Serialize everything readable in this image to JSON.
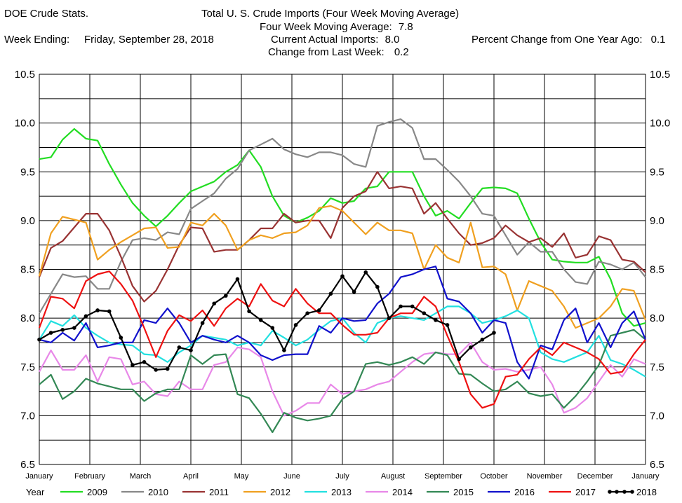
{
  "header": {
    "source": "DOE Crude Stats.",
    "title": "Total U. S. Crude Imports (Four Week Moving Average)",
    "week_ending_label": "Week Ending:",
    "week_ending_value": "Friday, September 28, 2018",
    "stats": [
      {
        "label": "Four Week Moving Average:",
        "value": "7.8"
      },
      {
        "label": "Current Actual Imports:",
        "value": "8.0"
      },
      {
        "label": "Change from Last Week:",
        "value": "0.2"
      }
    ],
    "pct_change_label": "Percent Change from One Year Ago:",
    "pct_change_value": "0.1"
  },
  "legend_title": "Year",
  "chart_data": {
    "type": "line",
    "title": "Total U. S. Crude Imports (Four Week Moving Average)",
    "ylim": [
      6.5,
      10.5
    ],
    "ystep": 0.25,
    "ytick_labels": [
      "6.5",
      "7.0",
      "7.5",
      "8.0",
      "8.5",
      "9.0",
      "9.5",
      "10.0",
      "10.5"
    ],
    "xlim": [
      1,
      53
    ],
    "months": [
      "January",
      "February",
      "March",
      "April",
      "May",
      "June",
      "July",
      "August",
      "September",
      "October",
      "November",
      "December",
      "January"
    ],
    "grid": true,
    "legend_position": "bottom",
    "series": [
      {
        "name": "2009",
        "color": "#22dd22",
        "marker": false,
        "values": [
          9.63,
          9.65,
          9.83,
          9.94,
          9.84,
          9.82,
          9.58,
          9.37,
          9.18,
          9.05,
          8.94,
          9.05,
          9.18,
          9.3,
          9.35,
          9.4,
          9.5,
          9.57,
          9.72,
          9.55,
          9.25,
          9.05,
          8.98,
          9.03,
          9.1,
          9.23,
          9.18,
          9.2,
          9.33,
          9.35,
          9.5,
          9.5,
          9.5,
          9.25,
          9.05,
          9.1,
          9.02,
          9.18,
          9.33,
          9.34,
          9.33,
          9.28,
          9.02,
          8.78,
          8.6,
          8.58,
          8.57,
          8.57,
          8.63,
          8.4,
          8.05,
          7.92,
          7.95
        ]
      },
      {
        "name": "2010",
        "color": "#888888",
        "marker": false,
        "values": [
          8.05,
          8.25,
          8.45,
          8.42,
          8.43,
          8.3,
          8.3,
          8.58,
          8.8,
          8.82,
          8.8,
          8.88,
          8.86,
          9.12,
          9.2,
          9.28,
          9.43,
          9.53,
          9.72,
          9.78,
          9.84,
          9.73,
          9.68,
          9.65,
          9.7,
          9.7,
          9.67,
          9.58,
          9.55,
          9.97,
          10.01,
          10.04,
          9.95,
          9.63,
          9.63,
          9.52,
          9.4,
          9.25,
          9.07,
          9.05,
          8.85,
          8.65,
          8.78,
          8.68,
          8.68,
          8.5,
          8.37,
          8.35,
          8.58,
          8.55,
          8.5,
          8.57,
          8.42
        ]
      },
      {
        "name": "2011",
        "color": "#993333",
        "marker": false,
        "values": [
          8.42,
          8.72,
          8.79,
          8.93,
          9.07,
          9.07,
          8.9,
          8.63,
          8.33,
          8.17,
          8.28,
          8.5,
          8.75,
          8.93,
          8.92,
          8.68,
          8.7,
          8.7,
          8.8,
          8.92,
          8.92,
          9.07,
          8.98,
          9.0,
          9.0,
          8.82,
          9.13,
          9.25,
          9.3,
          9.5,
          9.33,
          9.35,
          9.33,
          9.07,
          9.18,
          9.02,
          8.87,
          8.75,
          8.77,
          8.82,
          8.95,
          8.85,
          8.78,
          8.82,
          8.73,
          8.87,
          8.62,
          8.65,
          8.84,
          8.8,
          8.6,
          8.58,
          8.47
        ]
      },
      {
        "name": "2012",
        "color": "#f0a020",
        "marker": false,
        "values": [
          8.43,
          8.87,
          9.04,
          9.01,
          8.98,
          8.6,
          8.7,
          8.78,
          8.85,
          8.92,
          8.93,
          8.72,
          8.73,
          8.98,
          8.95,
          9.07,
          8.95,
          8.7,
          8.8,
          8.85,
          8.82,
          8.87,
          8.88,
          8.95,
          9.13,
          9.15,
          9.1,
          8.98,
          8.86,
          8.98,
          8.9,
          8.9,
          8.87,
          8.5,
          8.75,
          8.62,
          8.57,
          8.98,
          8.52,
          8.53,
          8.45,
          8.08,
          8.38,
          8.33,
          8.28,
          8.12,
          7.9,
          7.95,
          8.0,
          8.12,
          8.3,
          8.28,
          7.98
        ]
      },
      {
        "name": "2013",
        "color": "#22e0e0",
        "marker": false,
        "values": [
          7.78,
          7.97,
          7.92,
          8.03,
          7.9,
          7.82,
          7.75,
          7.73,
          7.72,
          7.63,
          7.62,
          7.55,
          7.65,
          7.72,
          7.82,
          7.8,
          7.78,
          7.72,
          7.75,
          7.72,
          7.87,
          7.8,
          7.72,
          7.78,
          7.88,
          7.97,
          8.0,
          7.85,
          7.75,
          7.95,
          8.0,
          8.02,
          8.0,
          7.98,
          8.05,
          8.12,
          8.12,
          8.05,
          7.95,
          7.98,
          8.02,
          8.08,
          8.0,
          7.65,
          7.58,
          7.55,
          7.6,
          7.65,
          7.82,
          7.57,
          7.53,
          7.47,
          7.4
        ]
      },
      {
        "name": "2014",
        "color": "#e888e8",
        "marker": false,
        "values": [
          7.45,
          7.67,
          7.47,
          7.47,
          7.62,
          7.35,
          7.6,
          7.58,
          7.32,
          7.35,
          7.22,
          7.2,
          7.35,
          7.27,
          7.27,
          7.52,
          7.55,
          7.7,
          7.68,
          7.6,
          7.25,
          7.0,
          7.05,
          7.13,
          7.13,
          7.32,
          7.22,
          7.25,
          7.27,
          7.32,
          7.35,
          7.45,
          7.55,
          7.63,
          7.65,
          7.63,
          7.63,
          7.75,
          7.55,
          7.47,
          7.48,
          7.45,
          7.47,
          7.5,
          7.32,
          7.03,
          7.08,
          7.18,
          7.35,
          7.52,
          7.4,
          7.58,
          7.53
        ]
      },
      {
        "name": "2015",
        "color": "#338855",
        "marker": false,
        "values": [
          7.32,
          7.42,
          7.17,
          7.25,
          7.38,
          7.33,
          7.3,
          7.27,
          7.27,
          7.15,
          7.23,
          7.27,
          7.27,
          7.62,
          7.53,
          7.62,
          7.63,
          7.22,
          7.18,
          7.02,
          6.83,
          7.03,
          6.98,
          6.95,
          6.97,
          7.0,
          7.17,
          7.25,
          7.53,
          7.55,
          7.52,
          7.55,
          7.6,
          7.53,
          7.65,
          7.62,
          7.43,
          7.42,
          7.33,
          7.25,
          7.27,
          7.35,
          7.23,
          7.2,
          7.22,
          7.08,
          7.2,
          7.35,
          7.52,
          7.82,
          7.85,
          7.88,
          7.78
        ]
      },
      {
        "name": "2016",
        "color": "#1111cc",
        "marker": false,
        "values": [
          7.78,
          7.75,
          7.85,
          7.77,
          7.95,
          7.7,
          7.72,
          7.75,
          7.75,
          7.98,
          7.95,
          8.1,
          7.95,
          7.75,
          7.82,
          7.78,
          7.75,
          7.82,
          7.75,
          7.62,
          7.57,
          7.62,
          7.63,
          7.63,
          7.92,
          7.85,
          8.0,
          7.97,
          7.98,
          8.15,
          8.25,
          8.42,
          8.45,
          8.5,
          8.53,
          8.2,
          8.17,
          8.05,
          7.85,
          7.98,
          7.95,
          7.55,
          7.38,
          7.72,
          7.68,
          7.98,
          8.1,
          7.75,
          7.95,
          7.7,
          7.95,
          8.07,
          7.78
        ]
      },
      {
        "name": "2017",
        "color": "#ee1111",
        "marker": false,
        "values": [
          7.9,
          8.22,
          8.2,
          8.1,
          8.38,
          8.45,
          8.48,
          8.35,
          8.18,
          7.9,
          7.6,
          7.87,
          8.03,
          7.97,
          8.08,
          7.92,
          8.1,
          8.2,
          8.12,
          8.35,
          8.18,
          8.12,
          8.3,
          8.15,
          8.05,
          8.05,
          7.93,
          7.83,
          7.83,
          7.85,
          8.0,
          8.05,
          8.05,
          8.22,
          8.12,
          7.82,
          7.55,
          7.22,
          7.08,
          7.12,
          7.4,
          7.42,
          7.58,
          7.7,
          7.62,
          7.75,
          7.7,
          7.65,
          7.58,
          7.43,
          7.45,
          7.63,
          7.78
        ]
      },
      {
        "name": "2018",
        "color": "#000000",
        "marker": true,
        "values": [
          7.78,
          7.85,
          7.88,
          7.9,
          8.02,
          8.08,
          8.07,
          7.8,
          7.52,
          7.55,
          7.47,
          7.48,
          7.7,
          7.67,
          7.95,
          8.15,
          8.23,
          8.4,
          8.07,
          7.98,
          7.9,
          7.67,
          7.93,
          8.05,
          8.08,
          8.25,
          8.43,
          8.27,
          8.47,
          8.32,
          8.0,
          8.12,
          8.12,
          8.05,
          7.98,
          7.93,
          7.58,
          7.7,
          7.78,
          7.85
        ]
      }
    ]
  }
}
